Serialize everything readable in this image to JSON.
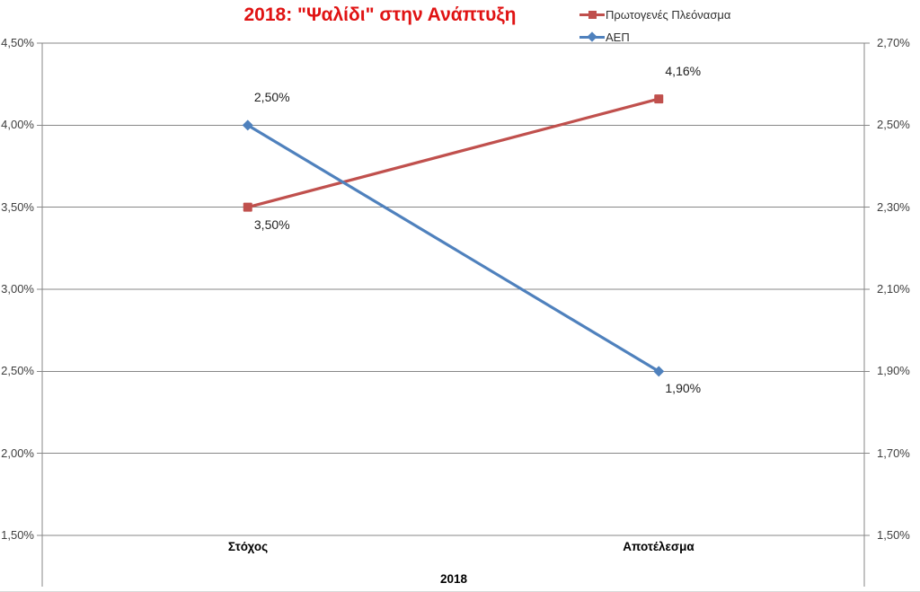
{
  "title": "2018: \"Ψαλίδι\" στην Ανάπτυξη",
  "colors": {
    "title": "#e01313",
    "gridline": "#878787",
    "axis_text": "#3f3f3f",
    "primary_series": "#c0504d",
    "secondary_series": "#4f81bd"
  },
  "legend": {
    "position": "top-right"
  },
  "chart_data": {
    "type": "line",
    "categories": [
      "Στόχος",
      "Αποτέλεσμα"
    ],
    "x_axis_title": "2018",
    "grid": true,
    "legend_position": "top-right",
    "series": [
      {
        "name": "Πρωτογενές Πλεόνασμα",
        "axis": "left",
        "color": "#c0504d",
        "marker": "square",
        "values": [
          3.5,
          4.16
        ],
        "labels": [
          "3,50%",
          "4,16%"
        ]
      },
      {
        "name": "ΑΕΠ",
        "axis": "right",
        "color": "#4f81bd",
        "marker": "diamond",
        "values": [
          2.5,
          1.9
        ],
        "labels": [
          "2,50%",
          "1,90%"
        ]
      }
    ],
    "left_axis": {
      "min": 1.5,
      "max": 4.5,
      "step": 0.5,
      "ticks": [
        "4,50%",
        "4,00%",
        "3,50%",
        "3,00%",
        "2,50%",
        "2,00%",
        "1,50%"
      ]
    },
    "right_axis": {
      "min": 1.5,
      "max": 2.7,
      "step": 0.2,
      "ticks": [
        "2,70%",
        "2,50%",
        "2,30%",
        "2,10%",
        "1,90%",
        "1,70%",
        "1,50%"
      ]
    }
  }
}
